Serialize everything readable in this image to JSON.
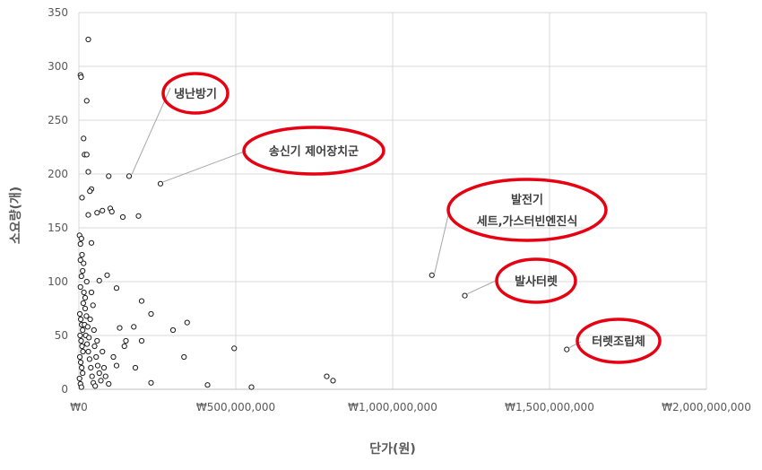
{
  "chart_data": {
    "type": "scatter",
    "xlabel": "단가(원)",
    "ylabel": "소요량(개)",
    "xlim": [
      0,
      2000000000
    ],
    "ylim": [
      0,
      350
    ],
    "grid": true,
    "x_ticks": [
      {
        "value": 0,
        "label": "₩0"
      },
      {
        "value": 500000000,
        "label": "₩500,000,000"
      },
      {
        "value": 1000000000,
        "label": "₩1,000,000,000"
      },
      {
        "value": 1500000000,
        "label": "₩1,500,000,000"
      },
      {
        "value": 2000000000,
        "label": "₩2,000,000,000"
      }
    ],
    "y_ticks": [
      {
        "value": 0,
        "label": "0"
      },
      {
        "value": 50,
        "label": "50"
      },
      {
        "value": 100,
        "label": "100"
      },
      {
        "value": 150,
        "label": "150"
      },
      {
        "value": 200,
        "label": "200"
      },
      {
        "value": 250,
        "label": "250"
      },
      {
        "value": 300,
        "label": "300"
      },
      {
        "value": 350,
        "label": "350"
      }
    ],
    "points": [
      {
        "x": 30000000,
        "y": 325
      },
      {
        "x": 5000000,
        "y": 292
      },
      {
        "x": 7000000,
        "y": 290
      },
      {
        "x": 25000000,
        "y": 268
      },
      {
        "x": 15000000,
        "y": 233
      },
      {
        "x": 18000000,
        "y": 218
      },
      {
        "x": 25000000,
        "y": 218
      },
      {
        "x": 30000000,
        "y": 202
      },
      {
        "x": 95000000,
        "y": 198
      },
      {
        "x": 160000000,
        "y": 198
      },
      {
        "x": 40000000,
        "y": 186
      },
      {
        "x": 35000000,
        "y": 184
      },
      {
        "x": 10000000,
        "y": 178
      },
      {
        "x": 260000000,
        "y": 191
      },
      {
        "x": 75000000,
        "y": 166
      },
      {
        "x": 100000000,
        "y": 168
      },
      {
        "x": 105000000,
        "y": 165
      },
      {
        "x": 58000000,
        "y": 164
      },
      {
        "x": 30000000,
        "y": 162
      },
      {
        "x": 140000000,
        "y": 160
      },
      {
        "x": 190000000,
        "y": 161
      },
      {
        "x": 2000000,
        "y": 143
      },
      {
        "x": 8000000,
        "y": 140
      },
      {
        "x": 5000000,
        "y": 135
      },
      {
        "x": 40000000,
        "y": 136
      },
      {
        "x": 10000000,
        "y": 125
      },
      {
        "x": 5000000,
        "y": 120
      },
      {
        "x": 15000000,
        "y": 117
      },
      {
        "x": 65000000,
        "y": 101
      },
      {
        "x": 90000000,
        "y": 106
      },
      {
        "x": 12000000,
        "y": 110
      },
      {
        "x": 8000000,
        "y": 105
      },
      {
        "x": 120000000,
        "y": 94
      },
      {
        "x": 40000000,
        "y": 90
      },
      {
        "x": 5000000,
        "y": 95
      },
      {
        "x": 20000000,
        "y": 85
      },
      {
        "x": 200000000,
        "y": 82
      },
      {
        "x": 45000000,
        "y": 78
      },
      {
        "x": 230000000,
        "y": 70
      },
      {
        "x": 345000000,
        "y": 62
      },
      {
        "x": 130000000,
        "y": 57
      },
      {
        "x": 175000000,
        "y": 58
      },
      {
        "x": 300000000,
        "y": 55
      },
      {
        "x": 150000000,
        "y": 45
      },
      {
        "x": 200000000,
        "y": 45
      },
      {
        "x": 110000000,
        "y": 30
      },
      {
        "x": 145000000,
        "y": 40
      },
      {
        "x": 335000000,
        "y": 30
      },
      {
        "x": 495000000,
        "y": 38
      },
      {
        "x": 180000000,
        "y": 20
      },
      {
        "x": 120000000,
        "y": 22
      },
      {
        "x": 80000000,
        "y": 20
      },
      {
        "x": 230000000,
        "y": 6
      },
      {
        "x": 410000000,
        "y": 4
      },
      {
        "x": 550000000,
        "y": 2
      },
      {
        "x": 790000000,
        "y": 12
      },
      {
        "x": 810000000,
        "y": 8
      },
      {
        "x": 1125000000,
        "y": 106
      },
      {
        "x": 1230000000,
        "y": 87
      },
      {
        "x": 1555000000,
        "y": 37
      },
      {
        "x": 3000000,
        "y": 70
      },
      {
        "x": 6000000,
        "y": 65
      },
      {
        "x": 9000000,
        "y": 60
      },
      {
        "x": 12000000,
        "y": 55
      },
      {
        "x": 4000000,
        "y": 50
      },
      {
        "x": 7000000,
        "y": 45
      },
      {
        "x": 10000000,
        "y": 40
      },
      {
        "x": 13000000,
        "y": 35
      },
      {
        "x": 3000000,
        "y": 30
      },
      {
        "x": 6000000,
        "y": 25
      },
      {
        "x": 9000000,
        "y": 20
      },
      {
        "x": 12000000,
        "y": 15
      },
      {
        "x": 2000000,
        "y": 10
      },
      {
        "x": 5000000,
        "y": 5
      },
      {
        "x": 8000000,
        "y": 2
      },
      {
        "x": 18000000,
        "y": 60
      },
      {
        "x": 22000000,
        "y": 50
      },
      {
        "x": 26000000,
        "y": 42
      },
      {
        "x": 30000000,
        "y": 35
      },
      {
        "x": 34000000,
        "y": 28
      },
      {
        "x": 38000000,
        "y": 20
      },
      {
        "x": 42000000,
        "y": 12
      },
      {
        "x": 46000000,
        "y": 6
      },
      {
        "x": 20000000,
        "y": 75
      },
      {
        "x": 24000000,
        "y": 68
      },
      {
        "x": 28000000,
        "y": 58
      },
      {
        "x": 32000000,
        "y": 48
      },
      {
        "x": 50000000,
        "y": 40
      },
      {
        "x": 55000000,
        "y": 30
      },
      {
        "x": 60000000,
        "y": 22
      },
      {
        "x": 65000000,
        "y": 15
      },
      {
        "x": 70000000,
        "y": 8
      },
      {
        "x": 16000000,
        "y": 90
      },
      {
        "x": 25000000,
        "y": 100
      },
      {
        "x": 14000000,
        "y": 80
      },
      {
        "x": 36000000,
        "y": 65
      },
      {
        "x": 48000000,
        "y": 55
      },
      {
        "x": 58000000,
        "y": 45
      },
      {
        "x": 75000000,
        "y": 35
      },
      {
        "x": 85000000,
        "y": 12
      },
      {
        "x": 95000000,
        "y": 5
      },
      {
        "x": 52000000,
        "y": 3
      }
    ],
    "annotations": [
      {
        "lines": [
          "냉난방기"
        ],
        "x": 160000000,
        "y": 198
      },
      {
        "lines": [
          "송신기 제어장치군"
        ],
        "x": 260000000,
        "y": 191
      },
      {
        "lines": [
          "발전기",
          "세트,가스터빈엔진식"
        ],
        "x": 1125000000,
        "y": 106
      },
      {
        "lines": [
          "발사터렛"
        ],
        "x": 1230000000,
        "y": 87
      },
      {
        "lines": [
          "터렛조립체"
        ],
        "x": 1555000000,
        "y": 37
      }
    ]
  }
}
